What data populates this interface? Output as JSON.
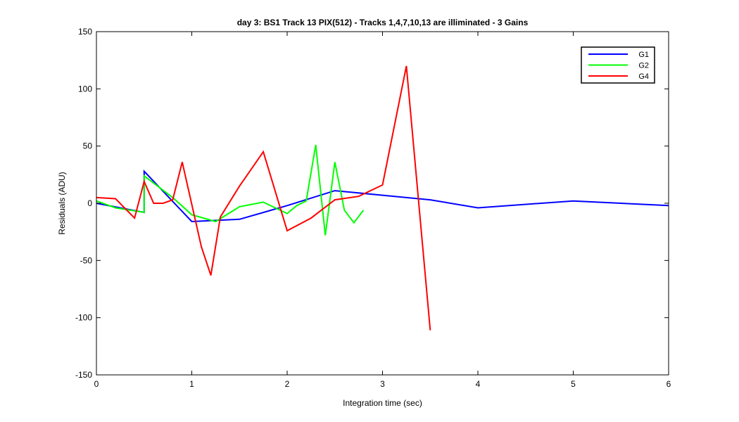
{
  "chart_data": {
    "type": "line",
    "title": "day 3: BS1  Track 13 PIX(512) - Tracks 1,4,7,10,13 are illiminated - 3 Gains",
    "xlabel": "Integration time (sec)",
    "ylabel": "Residuals (ADU)",
    "xlim": [
      0,
      6
    ],
    "ylim": [
      -150,
      150
    ],
    "xticks": [
      0,
      1,
      2,
      3,
      4,
      5,
      6
    ],
    "xtick_labels": [
      "0",
      "1",
      "2",
      "3",
      "4",
      "5",
      "6"
    ],
    "yticks": [
      -150,
      -100,
      -50,
      0,
      50,
      100,
      150
    ],
    "ytick_labels": [
      "-150",
      "-100",
      "-50",
      "0",
      "50",
      "100",
      "150"
    ],
    "grid": false,
    "legend_position": "top-right",
    "series": [
      {
        "name": "G1",
        "color": "#0000ff",
        "x": [
          0,
          0.5,
          0.5,
          1.0,
          1.5,
          2.0,
          2.5,
          3.0,
          3.5,
          4.0,
          5.0,
          6.0
        ],
        "y": [
          0,
          -8,
          28,
          -16,
          -14,
          -2,
          11,
          7,
          3,
          -4,
          2,
          -2
        ]
      },
      {
        "name": "G2",
        "color": "#00ff00",
        "x": [
          0,
          0.2,
          0.5,
          0.5,
          0.8,
          1.0,
          1.25,
          1.5,
          1.75,
          2.0,
          2.1,
          2.2,
          2.3,
          2.4,
          2.5,
          2.6,
          2.7,
          2.8
        ],
        "y": [
          2,
          -4,
          -8,
          24,
          5,
          -10,
          -16,
          -3,
          1,
          -9,
          -2,
          2,
          51,
          -28,
          36,
          -6,
          -17,
          -6
        ],
        "note_removed": true
      },
      {
        "name": "G4",
        "color": "#ff0000",
        "x": [
          0,
          0.2,
          0.4,
          0.5,
          0.6,
          0.7,
          0.8,
          0.9,
          1.1,
          1.2,
          1.3,
          1.5,
          1.75,
          2.0,
          2.25,
          2.5,
          2.75,
          3.0,
          3.25,
          3.5
        ],
        "y": [
          5,
          4,
          -13,
          19,
          0,
          0,
          3,
          36,
          -38,
          -63,
          -12,
          15,
          45,
          -24,
          -13,
          3,
          6,
          16,
          120,
          -111
        ]
      }
    ]
  }
}
